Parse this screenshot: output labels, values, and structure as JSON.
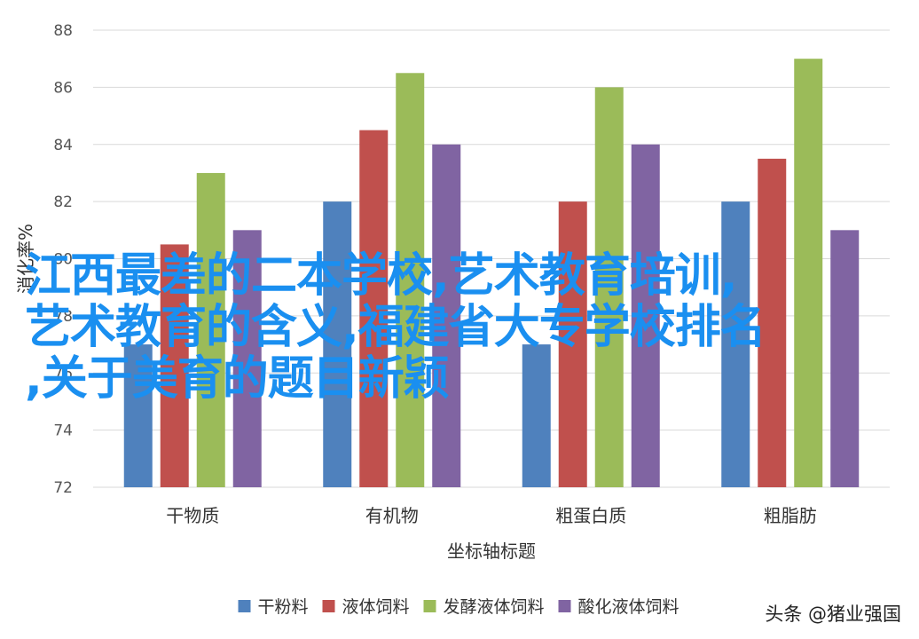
{
  "chart_data": {
    "type": "bar",
    "categories": [
      "干物质",
      "有机物",
      "粗蛋白质",
      "粗脂肪"
    ],
    "series": [
      {
        "name": "干粉料",
        "color": "#4f81bd",
        "values": [
          77,
          82,
          77,
          82
        ]
      },
      {
        "name": "液体饲料",
        "color": "#c0504d",
        "values": [
          80.5,
          84.5,
          82,
          83.5
        ]
      },
      {
        "name": "发酵液体饲料",
        "color": "#9bbb59",
        "values": [
          83,
          86.5,
          86,
          87
        ]
      },
      {
        "name": "酸化液体饲料",
        "color": "#8064a2",
        "values": [
          81,
          84,
          84,
          81
        ]
      }
    ],
    "ylim": [
      72,
      88
    ],
    "yticks": [
      72,
      74,
      76,
      78,
      80,
      82,
      84,
      86,
      88
    ],
    "xlabel": "坐标轴标题",
    "ylabel": "消化率%",
    "grid": true,
    "legend": "bottom"
  },
  "overlay": {
    "line1": "江西最差的二本学校,艺术教育培训,",
    "line2": "艺术教育的含义,福建省大专学校排名",
    "line3": ",关于美育的题目新颖"
  },
  "watermark": "头条 @猪业强国"
}
